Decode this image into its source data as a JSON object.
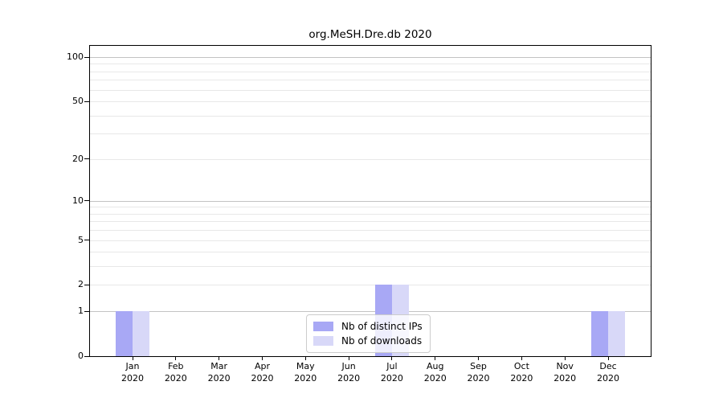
{
  "title": "org.MeSH.Dre.db 2020",
  "chart_data": {
    "type": "bar",
    "title": "org.MeSH.Dre.db 2020",
    "categories": [
      "Jan",
      "Feb",
      "Mar",
      "Apr",
      "May",
      "Jun",
      "Jul",
      "Aug",
      "Sep",
      "Oct",
      "Nov",
      "Dec"
    ],
    "year": "2020",
    "series": [
      {
        "name": "Nb of distinct IPs",
        "color": "#a8a8f5",
        "values": [
          1,
          0,
          0,
          0,
          0,
          0,
          2,
          0,
          0,
          0,
          0,
          1
        ]
      },
      {
        "name": "Nb of downloads",
        "color": "#d8d8f8",
        "values": [
          1,
          0,
          0,
          0,
          0,
          0,
          2,
          0,
          0,
          0,
          0,
          1
        ]
      }
    ],
    "ylabel": "",
    "xlabel": "",
    "yscale": "log1p",
    "ylim": [
      0,
      100
    ],
    "yticks": [
      0,
      1,
      2,
      5,
      10,
      20,
      50,
      100
    ],
    "major_gridlines": [
      1,
      10,
      100
    ],
    "minor_gridlines": [
      2,
      3,
      4,
      5,
      6,
      7,
      8,
      9,
      20,
      30,
      40,
      50,
      60,
      70,
      80,
      90
    ],
    "grid": true,
    "legend_position": "lower center"
  },
  "colors": {
    "background": "#ffffff",
    "axis": "#000000",
    "major_grid": "#c3c3c3",
    "minor_grid": "#e8e8e8",
    "legend_border": "#cccccc"
  }
}
